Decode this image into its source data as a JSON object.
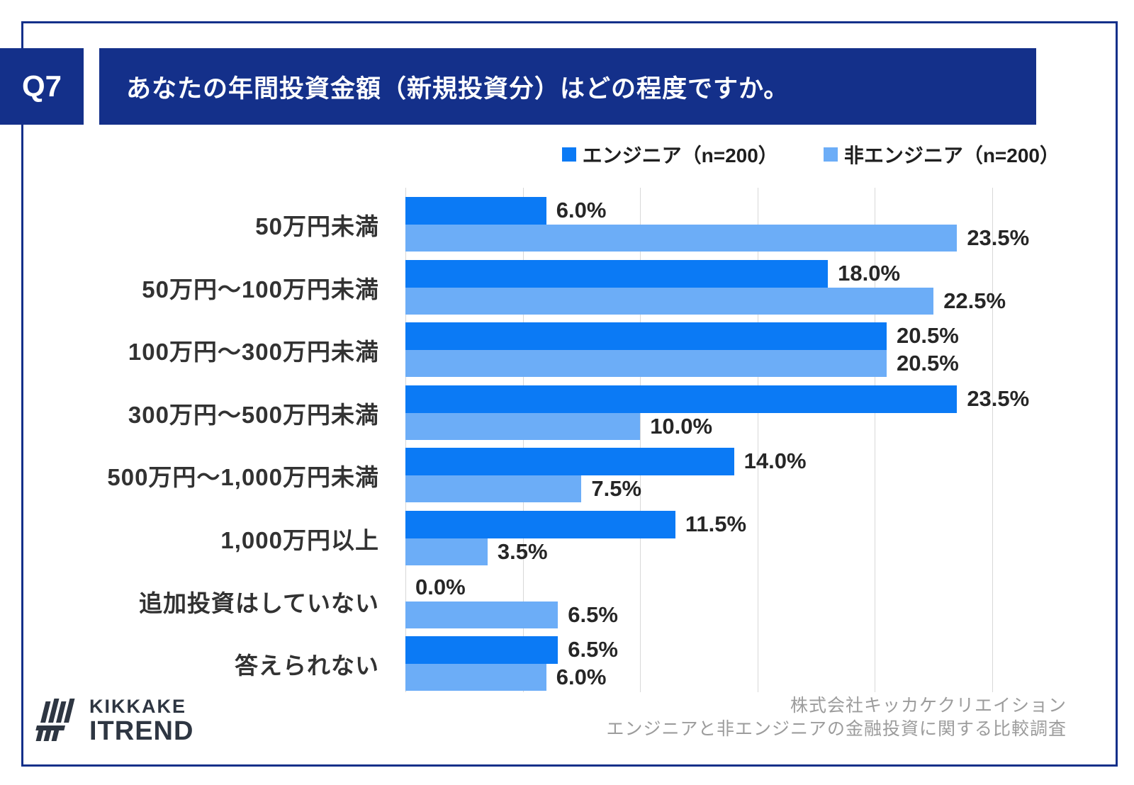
{
  "header": {
    "question_number": "Q7",
    "title": "あなたの年間投資金額（新規投資分）はどの程度ですか。"
  },
  "legend": [
    {
      "label": "エンジニア（n=200）",
      "color": "#0b7af5"
    },
    {
      "label": "非エンジニア（n=200）",
      "color": "#6cadf7"
    }
  ],
  "chart_data": {
    "type": "bar",
    "orientation": "horizontal",
    "title": "あなたの年間投資金額（新規投資分）はどの程度ですか。",
    "categories": [
      "50万円未満",
      "50万円〜100万円未満",
      "100万円〜300万円未満",
      "300万円〜500万円未満",
      "500万円〜1,000万円未満",
      "1,000万円以上",
      "追加投資はしていない",
      "答えられない"
    ],
    "series": [
      {
        "name": "エンジニア（n=200）",
        "color": "#0b7af5",
        "values": [
          6.0,
          18.0,
          20.5,
          23.5,
          14.0,
          11.5,
          0.0,
          6.5
        ],
        "labels": [
          "6.0%",
          "18.0%",
          "20.5%",
          "23.5%",
          "14.0%",
          "11.5%",
          "0.0%",
          "6.5%"
        ]
      },
      {
        "name": "非エンジニア（n=200）",
        "color": "#6cadf7",
        "values": [
          23.5,
          22.5,
          20.5,
          10.0,
          7.5,
          3.5,
          6.5,
          6.0
        ],
        "labels": [
          "23.5%",
          "22.5%",
          "20.5%",
          "10.0%",
          "7.5%",
          "3.5%",
          "6.5%",
          "6.0%"
        ]
      }
    ],
    "xlim": [
      0,
      25
    ],
    "gridline_step": 5,
    "grid": true,
    "legend_position": "top-right",
    "value_labels": true
  },
  "footer": {
    "logo_top": "KIKKAKE",
    "logo_bottom": "ITREND",
    "credit_line1": "株式会社キッカケクリエイション",
    "credit_line2": "エンジニアと非エンジニアの金融投資に関する比較調査"
  },
  "colors": {
    "navy": "#14308a",
    "engineer_blue": "#0b7af5",
    "non_engineer_blue": "#6cadf7",
    "gridline": "#d8d8d8",
    "value_text": "#262626",
    "credit_text": "#9c9c9c"
  }
}
